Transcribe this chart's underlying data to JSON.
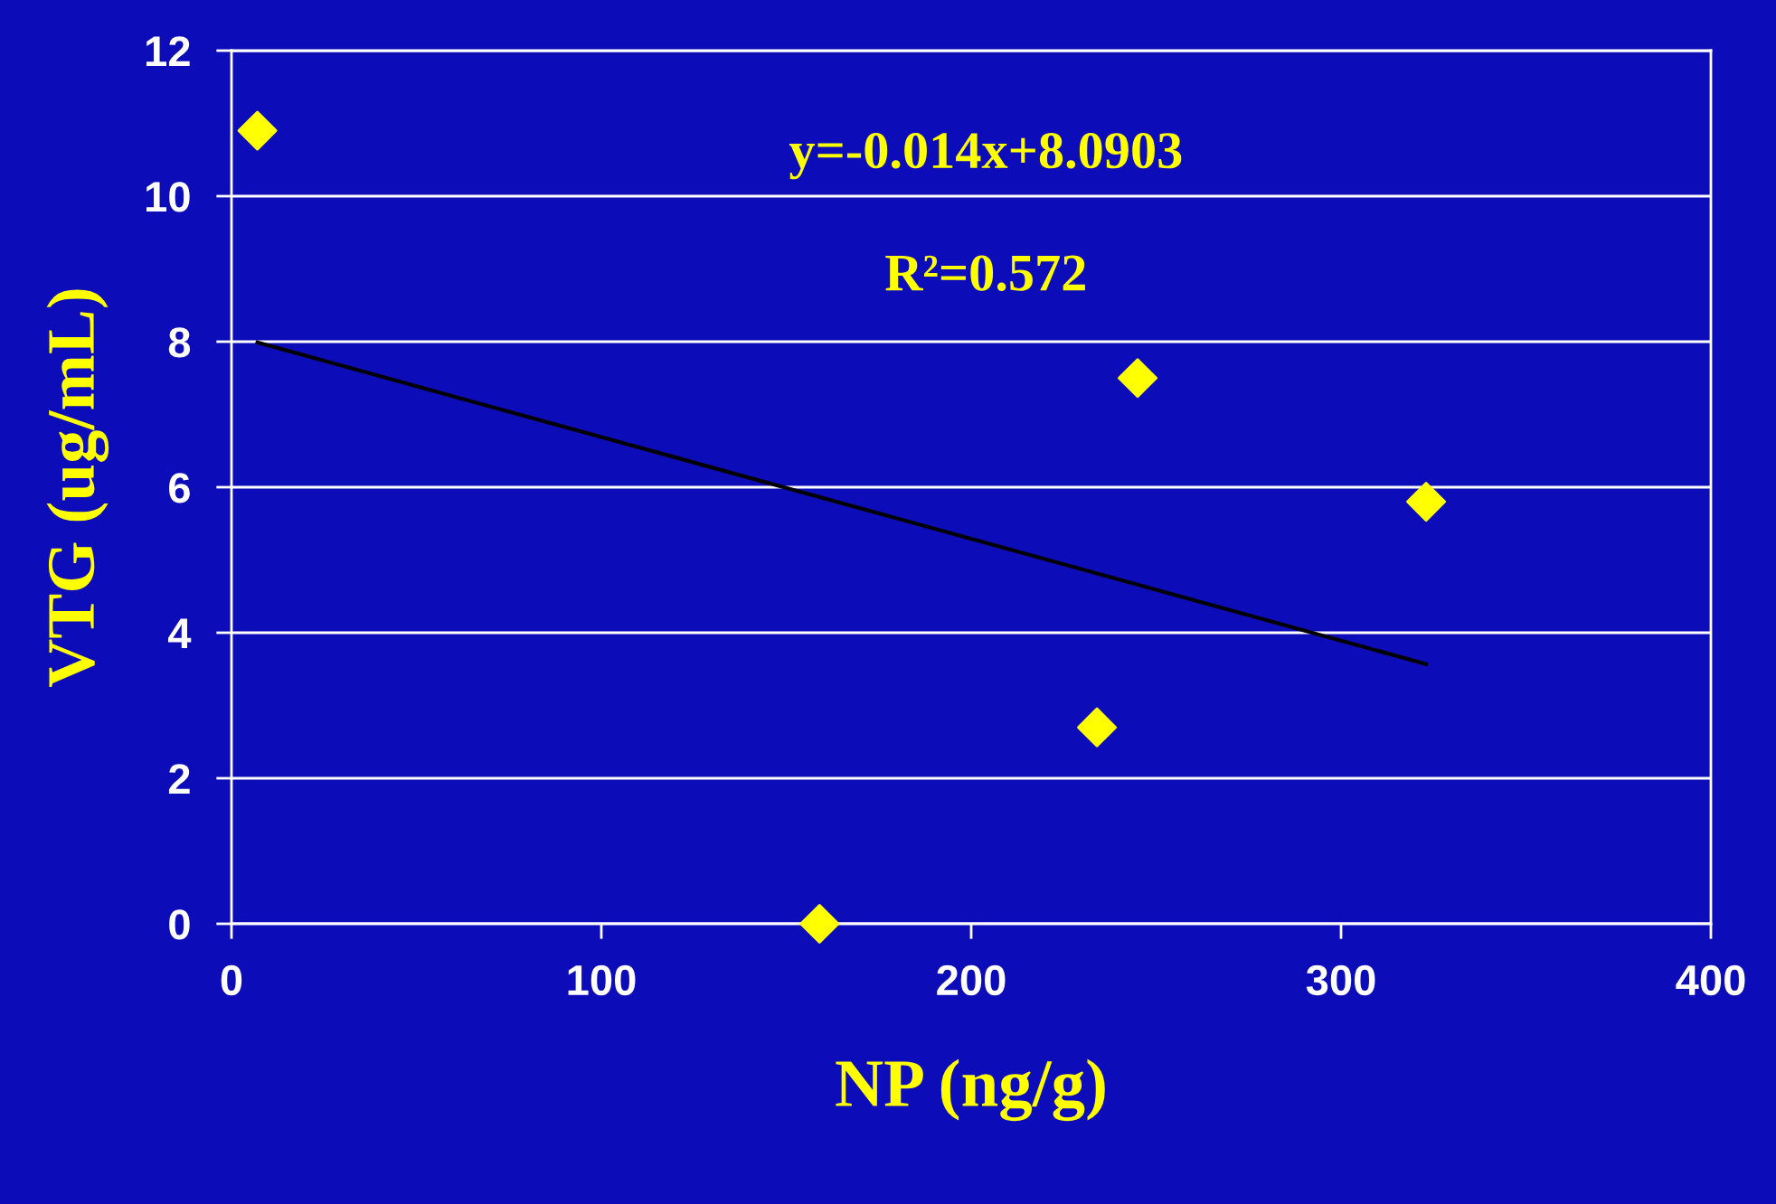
{
  "chart_data": {
    "type": "scatter",
    "xlabel": "NP (ng/g)",
    "ylabel": "VTG (ug/mL)",
    "xlim": [
      0,
      400
    ],
    "ylim": [
      0,
      12
    ],
    "xticks": [
      0,
      100,
      200,
      300,
      400
    ],
    "yticks": [
      0,
      2,
      4,
      6,
      8,
      10,
      12
    ],
    "grid": "y",
    "legend": false,
    "series": [
      {
        "color": "#ffff00",
        "marker": "diamond",
        "x": [
          7,
          159,
          234,
          245,
          323
        ],
        "values": [
          10.9,
          0,
          2.7,
          7.5,
          5.8
        ]
      },
      {
        "type": "line",
        "color": "#000000",
        "marker": "none",
        "line_style": "solid",
        "x": [
          7,
          323
        ],
        "values": [
          7.99,
          3.57
        ]
      }
    ],
    "annotations": [
      "y=-0.014x+8.0903",
      "R²=0.572"
    ]
  }
}
